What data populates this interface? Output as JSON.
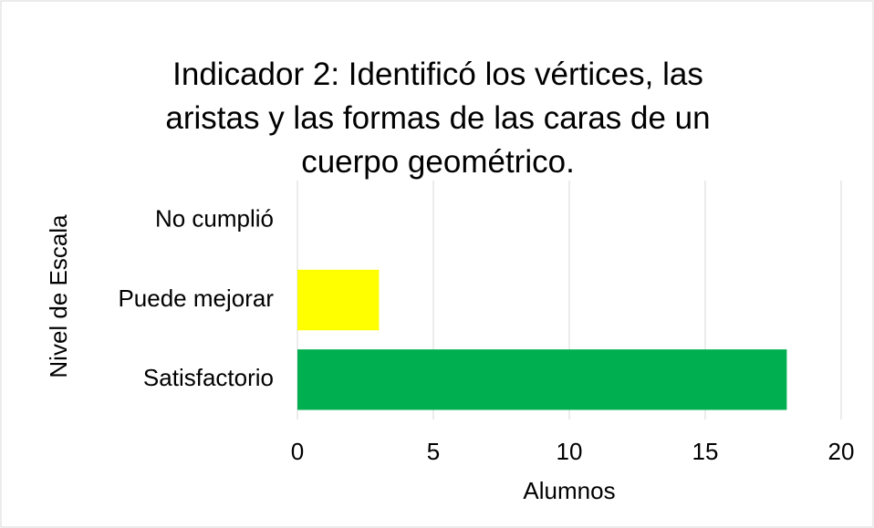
{
  "chart_data": {
    "type": "bar",
    "orientation": "horizontal",
    "title": "Indicador 2: Identificó los vértices, las aristas y las formas de las caras de un cuerpo geométrico.",
    "categories": [
      "No cumplió",
      "Puede mejorar",
      "Satisfactorio"
    ],
    "values": [
      0,
      3,
      18
    ],
    "colors": [
      null,
      "#ffff00",
      "#00b050"
    ],
    "xlabel": "Alumnos",
    "ylabel": "Nivel de Escala",
    "xlim": [
      0,
      20
    ],
    "xticks": [
      0,
      5,
      10,
      15,
      20
    ],
    "grid": true
  }
}
